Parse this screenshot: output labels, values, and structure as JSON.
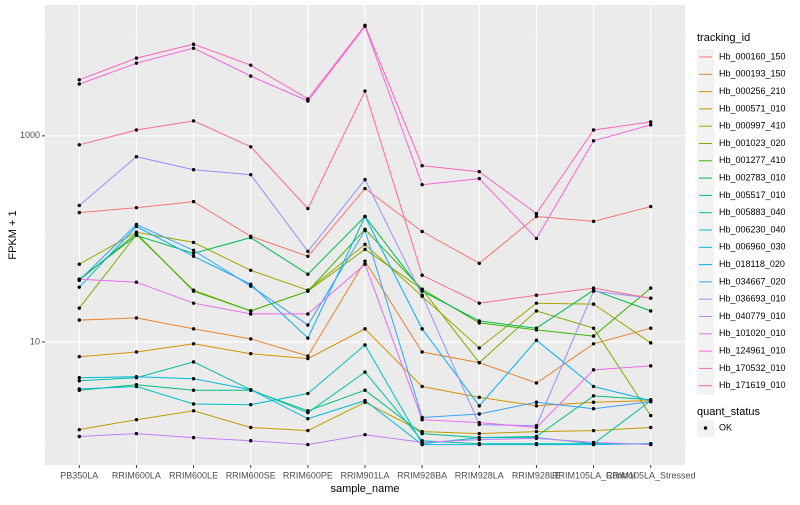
{
  "chart_data": {
    "type": "line",
    "x_label": "sample_name",
    "y_label": "FPKM + 1",
    "legend_title": "tracking_id",
    "legend_position": "right",
    "shape_legend_title": "quant_status",
    "shape_legend_entries": [
      "OK"
    ],
    "log_y": true,
    "grid": true,
    "categories": [
      "PB350LA",
      "RRIM600LA",
      "RRIM600LE",
      "RRIM600SE",
      "RRIM600PE",
      "RRIM901LA",
      "RRIM928BA",
      "RRIM928LA",
      "RRIM928LE",
      "RRIM105LA_Control",
      "RRIM105LA_Stressed"
    ],
    "ylim": [
      0.64,
      18600
    ],
    "yticks": [
      10,
      1000
    ],
    "minor_yticks": [
      1,
      100,
      10000
    ],
    "series": [
      {
        "name": "Hb_000160_150",
        "color": "#F8766D",
        "values": [
          180,
          201,
          230,
          106,
          67.8,
          308,
          118,
          58,
          165,
          148,
          206
        ]
      },
      {
        "name": "Hb_000193_150",
        "color": "#EA8331",
        "values": [
          16.3,
          17.1,
          13.4,
          10.7,
          7.3,
          60.7,
          8.0,
          6.3,
          4.0,
          9.6,
          13.6
        ]
      },
      {
        "name": "Hb_000256_210",
        "color": "#D89000",
        "values": [
          7.2,
          8.0,
          9.6,
          7.7,
          6.9,
          13.4,
          3.7,
          2.9,
          2.4,
          2.6,
          2.7
        ]
      },
      {
        "name": "Hb_000571_010",
        "color": "#C09B00",
        "values": [
          1.41,
          1.76,
          2.15,
          1.48,
          1.38,
          2.6,
          1.35,
          1.29,
          1.35,
          1.38,
          1.48
        ]
      },
      {
        "name": "Hb_000997_410",
        "color": "#A3A500",
        "values": [
          56.8,
          116,
          92.5,
          49.6,
          31.8,
          88.5,
          27.8,
          8.75,
          23.8,
          23.3,
          9.8
        ]
      },
      {
        "name": "Hb_001023_020",
        "color": "#7CAE00",
        "values": [
          21.3,
          110,
          31.8,
          20.0,
          31.1,
          79.2,
          32.5,
          6.3,
          20.0,
          13.6,
          1.93
        ]
      },
      {
        "name": "Hb_001277_410",
        "color": "#39B600",
        "values": [
          39.7,
          113,
          31.1,
          20.0,
          31.1,
          124,
          32.5,
          15.3,
          13.1,
          11.4,
          33.3
        ]
      },
      {
        "name": "Hb_002783_010",
        "color": "#00BB4E",
        "values": [
          40.6,
          108,
          72.4,
          103,
          45.4,
          165,
          31.1,
          16.0,
          13.6,
          31.8,
          20.0
        ]
      },
      {
        "name": "Hb_005517_010",
        "color": "#00BF7D",
        "values": [
          3.4,
          3.85,
          3.4,
          3.4,
          2.15,
          3.4,
          1.29,
          1.18,
          1.21,
          3.0,
          2.75
        ]
      },
      {
        "name": "Hb_005883_040",
        "color": "#00C1A3",
        "values": [
          4.2,
          4.5,
          6.4,
          3.44,
          2.06,
          5.1,
          1.1,
          1.03,
          1.03,
          1.03,
          2.7
        ]
      },
      {
        "name": "Hb_006230_040",
        "color": "#00BFC4",
        "values": [
          3.5,
          3.7,
          2.5,
          2.46,
          3.16,
          9.35,
          1.03,
          1.18,
          1.18,
          1.03,
          1.03
        ]
      },
      {
        "name": "Hb_006960_030",
        "color": "#00BAE0",
        "values": [
          4.5,
          4.6,
          4.4,
          3.44,
          1.8,
          2.7,
          1.01,
          1.01,
          1.01,
          1.01,
          1.03
        ]
      },
      {
        "name": "Hb_018118_020",
        "color": "#00B0F6",
        "values": [
          34.0,
          132,
          67.8,
          36.3,
          10.9,
          165,
          13.4,
          2.4,
          10.4,
          3.7,
          2.7
        ]
      },
      {
        "name": "Hb_034667_020",
        "color": "#35A2FF",
        "values": [
          39.7,
          138,
          77.4,
          34.8,
          14.6,
          121,
          1.85,
          2.0,
          2.6,
          2.25,
          2.63
        ]
      },
      {
        "name": "Hb_036693_010",
        "color": "#9590FF",
        "values": [
          211,
          627,
          469,
          420,
          75.7,
          376,
          28.4,
          1.58,
          1.54,
          31.1,
          26.6
        ]
      },
      {
        "name": "Hb_040779_010",
        "color": "#C77CFF",
        "values": [
          1.21,
          1.29,
          1.18,
          1.1,
          1.01,
          1.26,
          1.06,
          1.13,
          1.16,
          1.06,
          1.01
        ]
      },
      {
        "name": "Hb_101020_010",
        "color": "#E76BF3",
        "values": [
          40.6,
          38.0,
          23.8,
          18.7,
          18.7,
          56.8,
          1.76,
          1.65,
          1.48,
          5.36,
          5.86
        ]
      },
      {
        "name": "Hb_124961_010",
        "color": "#FA62DB",
        "values": [
          3180,
          5070,
          7080,
          3800,
          2180,
          11560,
          336,
          385,
          101,
          895,
          1277
        ]
      },
      {
        "name": "Hb_170532_010",
        "color": "#FF62BC",
        "values": [
          3500,
          5680,
          7740,
          4850,
          2280,
          11800,
          513,
          449,
          176,
          1140,
          1365
        ]
      },
      {
        "name": "Hb_171619_010",
        "color": "#FF6C91",
        "values": [
          819,
          1140,
          1396,
          783,
          197,
          2720,
          44.4,
          23.8,
          28.4,
          33.3,
          26.6
        ]
      }
    ]
  }
}
